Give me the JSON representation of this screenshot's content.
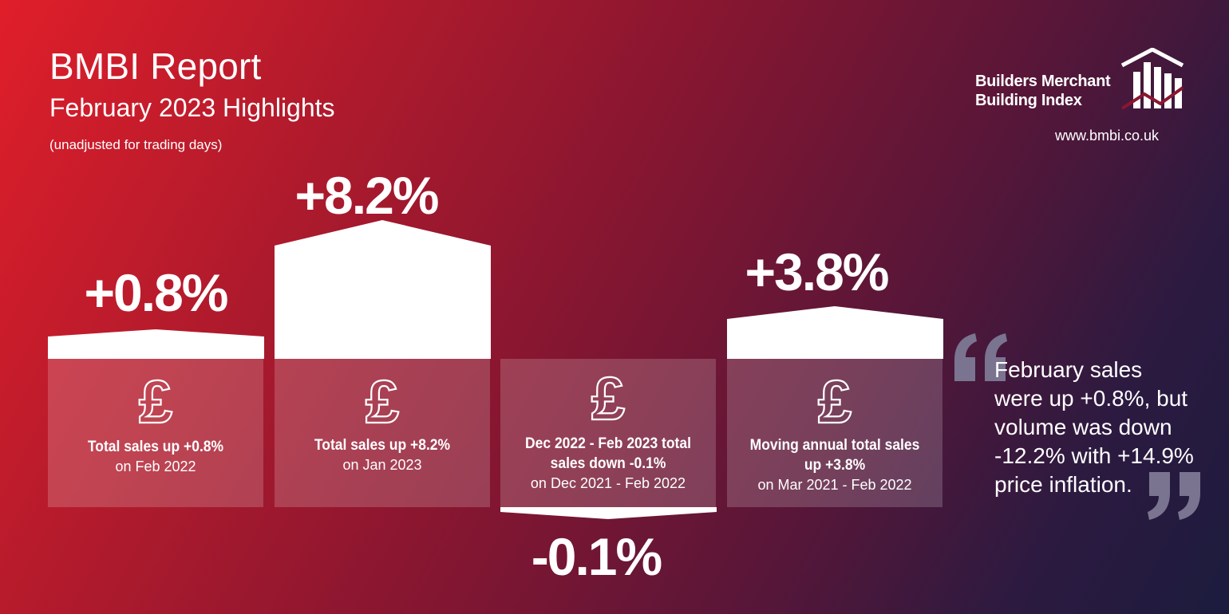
{
  "header": {
    "title": "BMBI Report",
    "subtitle": "February 2023 Highlights",
    "note": "(unadjusted for trading days)"
  },
  "logo": {
    "line1": "Builders Merchant",
    "line2": "Building Index",
    "url": "www.bmbi.co.uk"
  },
  "stats": [
    {
      "value": "+0.8%",
      "change": 0.8,
      "label_bold": "Total sales up +0.8%",
      "label_bold2": "",
      "label_sub": "on Feb 2022"
    },
    {
      "value": "+8.2%",
      "change": 8.2,
      "label_bold": "Total sales up +8.2%",
      "label_bold2": "",
      "label_sub": "on Jan 2023"
    },
    {
      "value": "-0.1%",
      "change": -0.1,
      "label_bold": "Dec 2022 - Feb 2023 total",
      "label_bold2": "sales down -0.1%",
      "label_sub": "on Dec 2021 - Feb 2022"
    },
    {
      "value": "+3.8%",
      "change": 3.8,
      "label_bold": "Moving annual total sales",
      "label_bold2": "up +3.8%",
      "label_sub": "on Mar 2021 - Feb 2022"
    }
  ],
  "quote": {
    "line1": "February sales",
    "line2": "were up +0.8%, but",
    "line3": "volume was down",
    "line4": "-12.2% with +14.9%",
    "line5": "price inflation."
  },
  "colors": {
    "gradient_start": "#e01e2a",
    "gradient_end": "#1c1c3e",
    "text": "#ffffff",
    "quote_mark": "#7a7490"
  }
}
